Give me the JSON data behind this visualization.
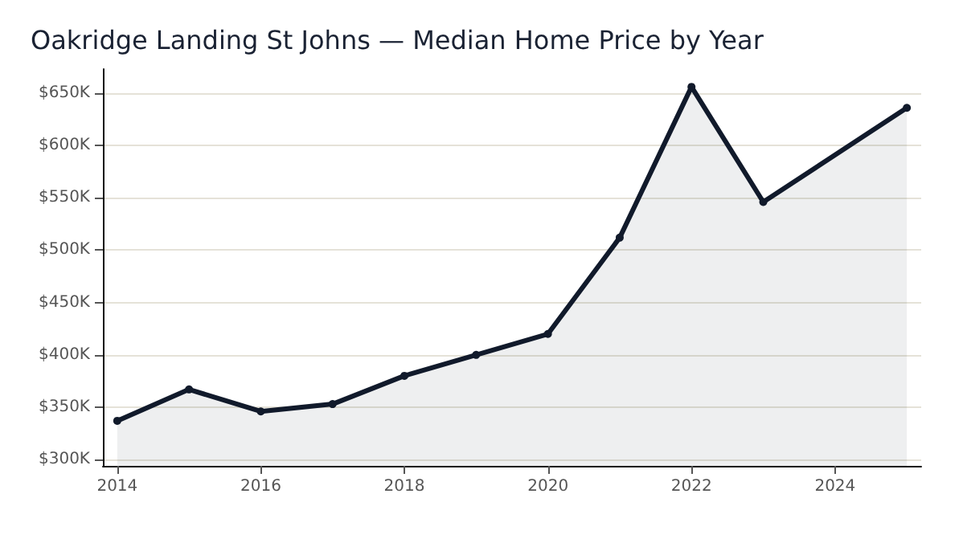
{
  "chart_data": {
    "type": "area",
    "title": "Oakridge Landing St Johns — Median Home Price by Year",
    "x": [
      2014,
      2015,
      2016,
      2017,
      2018,
      2019,
      2020,
      2021,
      2022,
      2023,
      2025
    ],
    "series": [
      {
        "color": "#111a2b",
        "values": [
          337000,
          367000,
          346000,
          353000,
          380000,
          400000,
          420000,
          512000,
          656000,
          546000,
          636000
        ]
      }
    ],
    "xlim": [
      2013.8,
      2025.2
    ],
    "xticks": [
      2014,
      2016,
      2018,
      2020,
      2022,
      2024
    ],
    "ylim": [
      294000,
      673000
    ],
    "yticks": [
      {
        "value": 300000,
        "label": "$300K"
      },
      {
        "value": 350000,
        "label": "$350K"
      },
      {
        "value": 400000,
        "label": "$400K"
      },
      {
        "value": 450000,
        "label": "$450K"
      },
      {
        "value": 500000,
        "label": "$500K"
      },
      {
        "value": 550000,
        "label": "$550K"
      },
      {
        "value": 600000,
        "label": "$600K"
      },
      {
        "value": 650000,
        "label": "$650K"
      }
    ],
    "grid": "y",
    "marker": "circle",
    "line_style": "solid"
  }
}
